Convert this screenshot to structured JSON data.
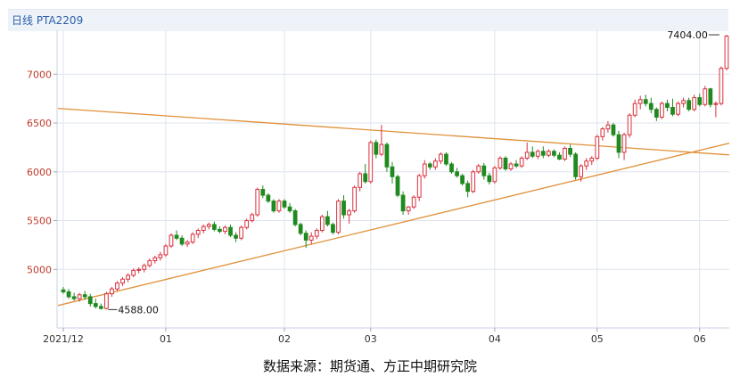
{
  "header": {
    "title": "日线 PTA2209"
  },
  "source_text": "数据来源：期货通、方正中期研究院",
  "colors": {
    "up": "#d9303e",
    "down": "#1f8a1f",
    "trendline": "#e0913a",
    "grid": "#dde4ef",
    "axis_text": "#333333",
    "price_text": "#c0392b"
  },
  "chart_data": {
    "type": "candlestick",
    "title": "日线 PTA2209",
    "xlabel": "",
    "ylabel": "",
    "ylim": [
      4400,
      7450
    ],
    "grid": true,
    "y_ticks": [
      "5000",
      "5500",
      "6000",
      "6500",
      "7000"
    ],
    "x_ticks": [
      {
        "label": "2021/12",
        "index": 0
      },
      {
        "label": "01",
        "index": 19
      },
      {
        "label": "02",
        "index": 41
      },
      {
        "label": "03",
        "index": 57
      },
      {
        "label": "04",
        "index": 80
      },
      {
        "label": "05",
        "index": 99
      },
      {
        "label": "06",
        "index": 118
      }
    ],
    "annotations": [
      {
        "label": "4588.00",
        "index": 8,
        "value": 4588
      },
      {
        "label": "7404.00",
        "index": 122,
        "value": 7404
      }
    ],
    "trendlines": [
      {
        "from": [
          -1,
          6650
        ],
        "to": [
          127,
          6160
        ]
      },
      {
        "from": [
          -1,
          4630
        ],
        "to": [
          127,
          6340
        ]
      }
    ],
    "candles": [
      [
        4790,
        4820,
        4750,
        4770
      ],
      [
        4770,
        4800,
        4700,
        4720
      ],
      [
        4720,
        4760,
        4680,
        4700
      ],
      [
        4700,
        4760,
        4670,
        4740
      ],
      [
        4740,
        4780,
        4690,
        4720
      ],
      [
        4720,
        4750,
        4620,
        4650
      ],
      [
        4650,
        4700,
        4600,
        4620
      ],
      [
        4620,
        4650,
        4588,
        4600
      ],
      [
        4600,
        4770,
        4590,
        4750
      ],
      [
        4750,
        4820,
        4720,
        4800
      ],
      [
        4800,
        4880,
        4780,
        4860
      ],
      [
        4860,
        4920,
        4830,
        4900
      ],
      [
        4900,
        4960,
        4870,
        4940
      ],
      [
        4940,
        5010,
        4920,
        4990
      ],
      [
        4990,
        5020,
        4960,
        5000
      ],
      [
        5000,
        5060,
        4970,
        5040
      ],
      [
        5040,
        5110,
        5020,
        5090
      ],
      [
        5090,
        5140,
        5060,
        5120
      ],
      [
        5120,
        5180,
        5090,
        5150
      ],
      [
        5150,
        5260,
        5130,
        5240
      ],
      [
        5240,
        5370,
        5220,
        5350
      ],
      [
        5350,
        5400,
        5300,
        5320
      ],
      [
        5320,
        5350,
        5240,
        5260
      ],
      [
        5260,
        5300,
        5230,
        5280
      ],
      [
        5280,
        5380,
        5260,
        5360
      ],
      [
        5360,
        5420,
        5320,
        5400
      ],
      [
        5400,
        5460,
        5370,
        5440
      ],
      [
        5440,
        5480,
        5410,
        5460
      ],
      [
        5460,
        5490,
        5390,
        5410
      ],
      [
        5410,
        5440,
        5370,
        5390
      ],
      [
        5390,
        5450,
        5360,
        5430
      ],
      [
        5430,
        5460,
        5330,
        5350
      ],
      [
        5350,
        5380,
        5280,
        5320
      ],
      [
        5320,
        5450,
        5300,
        5430
      ],
      [
        5430,
        5520,
        5410,
        5500
      ],
      [
        5500,
        5580,
        5480,
        5560
      ],
      [
        5560,
        5840,
        5540,
        5820
      ],
      [
        5820,
        5860,
        5730,
        5760
      ],
      [
        5760,
        5780,
        5680,
        5700
      ],
      [
        5700,
        5720,
        5580,
        5600
      ],
      [
        5600,
        5720,
        5580,
        5700
      ],
      [
        5700,
        5720,
        5620,
        5640
      ],
      [
        5640,
        5680,
        5580,
        5600
      ],
      [
        5600,
        5620,
        5440,
        5460
      ],
      [
        5460,
        5480,
        5350,
        5370
      ],
      [
        5370,
        5400,
        5220,
        5300
      ],
      [
        5300,
        5380,
        5260,
        5340
      ],
      [
        5340,
        5420,
        5310,
        5400
      ],
      [
        5400,
        5560,
        5380,
        5540
      ],
      [
        5540,
        5600,
        5440,
        5460
      ],
      [
        5460,
        5480,
        5360,
        5380
      ],
      [
        5380,
        5720,
        5360,
        5700
      ],
      [
        5700,
        5760,
        5520,
        5560
      ],
      [
        5560,
        5620,
        5470,
        5600
      ],
      [
        5600,
        5860,
        5580,
        5840
      ],
      [
        5840,
        6000,
        5800,
        5980
      ],
      [
        5980,
        6080,
        5880,
        5900
      ],
      [
        5900,
        6320,
        5880,
        6300
      ],
      [
        6300,
        6330,
        6140,
        6180
      ],
      [
        6180,
        6480,
        6160,
        6280
      ],
      [
        6280,
        6300,
        6000,
        6050
      ],
      [
        6050,
        6100,
        5880,
        5950
      ],
      [
        5950,
        5970,
        5740,
        5760
      ],
      [
        5760,
        5800,
        5560,
        5600
      ],
      [
        5600,
        5650,
        5560,
        5640
      ],
      [
        5640,
        5760,
        5620,
        5740
      ],
      [
        5740,
        5980,
        5700,
        5960
      ],
      [
        5960,
        6120,
        5930,
        6080
      ],
      [
        6080,
        6100,
        6020,
        6050
      ],
      [
        6050,
        6140,
        6020,
        6110
      ],
      [
        6110,
        6200,
        6080,
        6180
      ],
      [
        6180,
        6200,
        6060,
        6080
      ],
      [
        6080,
        6100,
        5980,
        6000
      ],
      [
        6000,
        6040,
        5940,
        5960
      ],
      [
        5960,
        5980,
        5860,
        5880
      ],
      [
        5880,
        5910,
        5740,
        5800
      ],
      [
        5800,
        6020,
        5780,
        6000
      ],
      [
        6000,
        6080,
        5980,
        6060
      ],
      [
        6060,
        6090,
        5920,
        5960
      ],
      [
        5960,
        5990,
        5870,
        5900
      ],
      [
        5900,
        6060,
        5880,
        6040
      ],
      [
        6040,
        6160,
        6020,
        6140
      ],
      [
        6140,
        6160,
        6010,
        6030
      ],
      [
        6030,
        6100,
        6010,
        6080
      ],
      [
        6080,
        6120,
        6040,
        6060
      ],
      [
        6060,
        6160,
        6040,
        6140
      ],
      [
        6140,
        6300,
        6120,
        6200
      ],
      [
        6200,
        6260,
        6140,
        6160
      ],
      [
        6160,
        6230,
        6130,
        6210
      ],
      [
        6210,
        6260,
        6140,
        6170
      ],
      [
        6170,
        6230,
        6150,
        6210
      ],
      [
        6210,
        6230,
        6150,
        6170
      ],
      [
        6170,
        6200,
        6120,
        6130
      ],
      [
        6130,
        6260,
        6110,
        6240
      ],
      [
        6240,
        6280,
        6150,
        6180
      ],
      [
        6180,
        6200,
        5920,
        5950
      ],
      [
        5950,
        6080,
        5900,
        6060
      ],
      [
        6060,
        6140,
        6020,
        6110
      ],
      [
        6110,
        6160,
        6070,
        6140
      ],
      [
        6140,
        6380,
        6120,
        6360
      ],
      [
        6360,
        6460,
        6320,
        6440
      ],
      [
        6440,
        6520,
        6400,
        6480
      ],
      [
        6480,
        6500,
        6360,
        6380
      ],
      [
        6380,
        6420,
        6140,
        6200
      ],
      [
        6200,
        6400,
        6120,
        6380
      ],
      [
        6380,
        6600,
        6350,
        6580
      ],
      [
        6580,
        6740,
        6560,
        6700
      ],
      [
        6700,
        6780,
        6640,
        6740
      ],
      [
        6740,
        6790,
        6670,
        6700
      ],
      [
        6700,
        6760,
        6600,
        6640
      ],
      [
        6640,
        6660,
        6520,
        6560
      ],
      [
        6560,
        6720,
        6540,
        6700
      ],
      [
        6700,
        6740,
        6620,
        6660
      ],
      [
        6660,
        6750,
        6570,
        6590
      ],
      [
        6590,
        6720,
        6570,
        6700
      ],
      [
        6700,
        6760,
        6660,
        6730
      ],
      [
        6730,
        6760,
        6620,
        6640
      ],
      [
        6640,
        6790,
        6620,
        6760
      ],
      [
        6760,
        6800,
        6670,
        6690
      ],
      [
        6690,
        6880,
        6670,
        6850
      ],
      [
        6850,
        6860,
        6660,
        6690
      ],
      [
        6690,
        6720,
        6560,
        6700
      ],
      [
        6700,
        7080,
        6680,
        7060
      ],
      [
        7060,
        7404,
        7040,
        7390
      ]
    ]
  }
}
